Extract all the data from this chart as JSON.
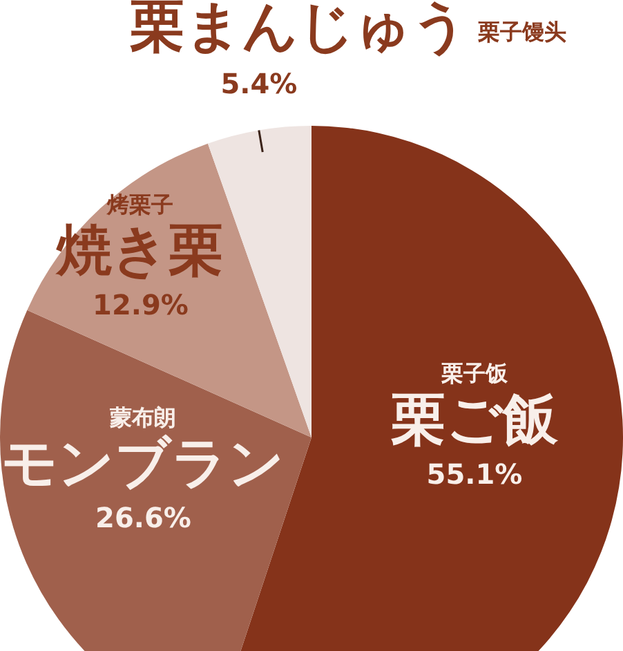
{
  "chart_data": {
    "type": "pie",
    "categories": [
      "栗ご飯",
      "モンブラン",
      "焼き栗",
      "栗まんじゅう"
    ],
    "values": [
      55.1,
      26.6,
      12.9,
      5.4
    ],
    "colors": [
      "#85331a",
      "#a0604c",
      "#c49686",
      "#eee4e1"
    ],
    "value_labels": [
      "55.1%",
      "26.6%",
      "12.9%",
      "5.4%"
    ],
    "annotations": [
      {
        "text": "栗子饭",
        "x": "栗ご飯"
      },
      {
        "text": "蒙布朗",
        "x": "モンブラン"
      },
      {
        "text": "烤栗子",
        "x": "焼き栗"
      },
      {
        "text": "栗子馒头",
        "x": "栗まんじゅう"
      }
    ]
  }
}
